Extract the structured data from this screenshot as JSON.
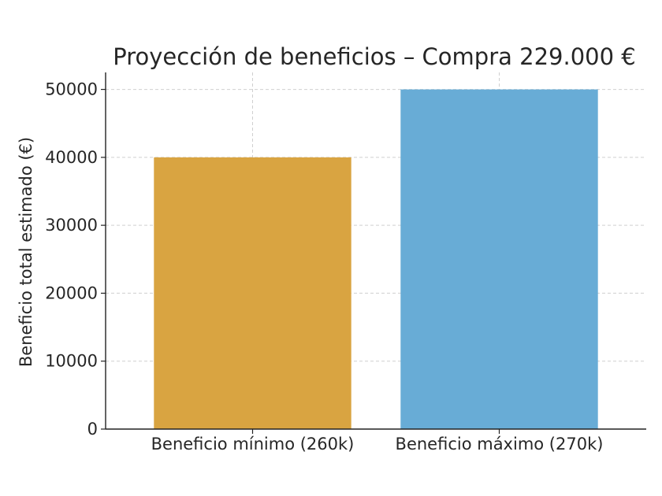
{
  "chart_data": {
    "type": "bar",
    "title": "Proyección de beneficios – Compra 229.000 €",
    "xlabel": "",
    "ylabel": "Beneficio total estimado (€)",
    "categories": [
      "Beneficio mínimo (260k)",
      "Beneficio máximo (270k)"
    ],
    "values": [
      40000,
      50000
    ],
    "colors": [
      "#d9a441",
      "#68acd6"
    ],
    "ylim": [
      0,
      52500
    ],
    "yticks": [
      0,
      10000,
      20000,
      30000,
      40000,
      50000
    ],
    "grid": true,
    "legend": "none"
  }
}
